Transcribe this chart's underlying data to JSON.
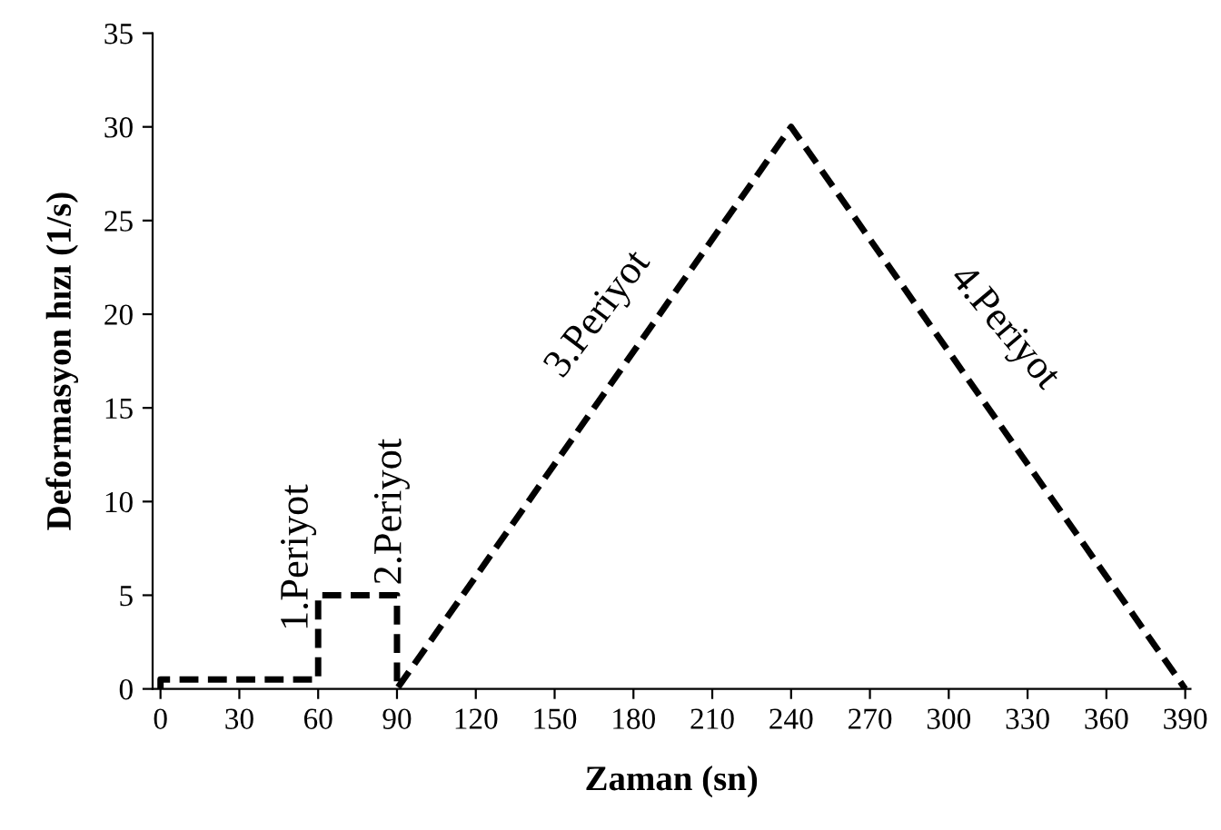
{
  "chart_data": {
    "type": "line",
    "xlabel": "Zaman (sn)",
    "ylabel": "Deformasyon hızı (1/s)",
    "x": [
      0,
      0,
      60,
      60,
      90,
      90,
      240,
      390
    ],
    "values": [
      0,
      0.5,
      0.5,
      5,
      5,
      0,
      30,
      0
    ],
    "color": "#000000",
    "line_style": "dashed",
    "marker": "none",
    "grid": false,
    "legend": false,
    "xlim": [
      -3,
      392
    ],
    "ylim": [
      0,
      35
    ],
    "xticks": [
      0,
      30,
      60,
      90,
      120,
      150,
      180,
      210,
      240,
      270,
      300,
      330,
      360,
      390
    ],
    "yticks": [
      0,
      5,
      10,
      15,
      20,
      25,
      30,
      35
    ],
    "annotations": [
      "1.Periyot",
      "2.Periyot",
      "3.Periyot",
      "4.Periyot"
    ]
  }
}
